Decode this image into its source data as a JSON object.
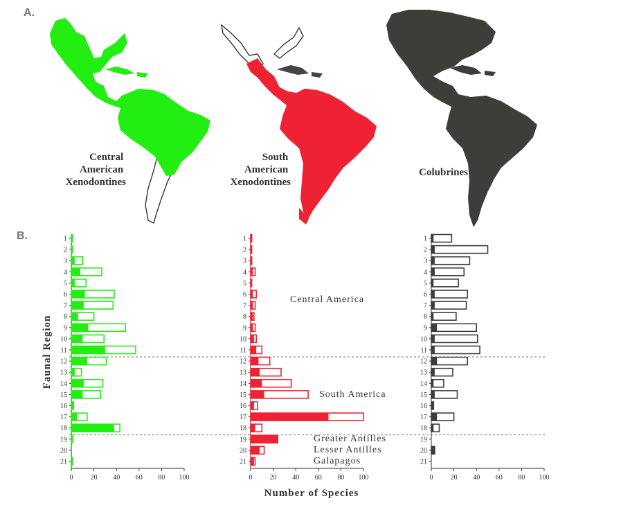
{
  "panel_labels": {
    "a": "A.",
    "b": "B."
  },
  "maps": [
    {
      "label_lines": [
        "Central",
        "American",
        "Xenodontines"
      ],
      "color": "#22ee11"
    },
    {
      "label_lines": [
        "South",
        "American",
        "Xenodontines"
      ],
      "color": "#ee2233"
    },
    {
      "label_lines": [
        "Colubrines"
      ],
      "color": "#3d3d3a"
    }
  ],
  "region_annotations": {
    "central_america": "Central America",
    "south_america": "South America",
    "greater_antilles": "Greater Antilles",
    "lesser_antilles": "Lesser Antilles",
    "galapagos": "Galapagos"
  },
  "chart_data": {
    "type": "bar",
    "orientation": "horizontal",
    "ylabel": "Faunal Region",
    "xlabel": "Number of Species",
    "categories": [
      "1",
      "2",
      "3",
      "4",
      "5",
      "6",
      "7",
      "8",
      "9",
      "10",
      "11",
      "12",
      "13",
      "14",
      "15",
      "16",
      "17",
      "18",
      "19",
      "20",
      "21"
    ],
    "xlim": [
      0,
      100
    ],
    "xticks": [
      0,
      20,
      40,
      60,
      80,
      100
    ],
    "region_dividers_after_category": [
      "11",
      "18"
    ],
    "panels": [
      {
        "name": "Central American Xenodontines",
        "color": "#22ee11",
        "total": [
          1,
          1,
          10,
          27,
          13,
          38,
          37,
          20,
          48,
          29,
          57,
          31,
          9,
          28,
          26,
          2,
          14,
          43,
          1,
          0,
          1
        ],
        "filled": [
          1,
          1,
          3,
          8,
          3,
          12,
          11,
          6,
          15,
          10,
          30,
          14,
          3,
          11,
          10,
          2,
          5,
          38,
          1,
          0,
          1
        ]
      },
      {
        "name": "South American Xenodontines",
        "color": "#ee2233",
        "total": [
          1,
          1,
          1,
          4,
          1,
          5,
          4,
          3,
          4,
          5,
          10,
          17,
          27,
          36,
          51,
          6,
          100,
          10,
          24,
          12,
          4
        ],
        "filled": [
          1,
          1,
          1,
          2,
          1,
          2,
          2,
          2,
          2,
          3,
          5,
          7,
          8,
          10,
          12,
          3,
          69,
          4,
          24,
          8,
          3
        ]
      },
      {
        "name": "Colubrines",
        "color": "#3d3d3a",
        "total": [
          18,
          50,
          34,
          29,
          24,
          32,
          31,
          22,
          40,
          41,
          43,
          32,
          19,
          11,
          23,
          2,
          20,
          7,
          0,
          3,
          0
        ],
        "filled": [
          2,
          3,
          3,
          3,
          2,
          3,
          3,
          2,
          5,
          3,
          3,
          5,
          3,
          2,
          3,
          2,
          5,
          2,
          0,
          3,
          0
        ]
      }
    ]
  }
}
